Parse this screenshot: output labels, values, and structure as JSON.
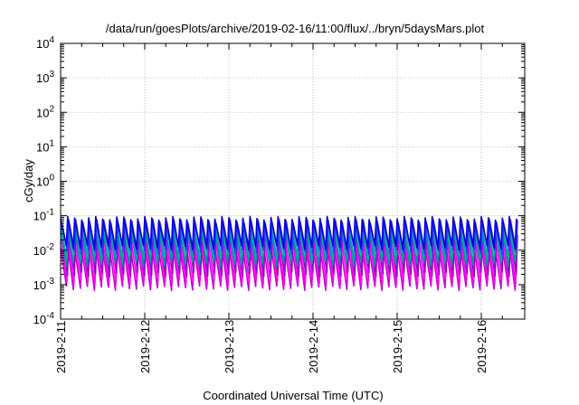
{
  "chart_data": {
    "type": "line",
    "title": "/data/run/goesPlots/archive/2019-02-16/11:00/flux/../bryn/5daysMars.plot",
    "xlabel": "Coordinated Universal Time (UTC)",
    "ylabel": "cGy/day",
    "yscale": "log",
    "ylim": [
      0.0001,
      10000
    ],
    "xlim": [
      "2019-02-11T00:00",
      "2019-02-16T11:00"
    ],
    "grid": true,
    "legend": "none",
    "x_ticks": [
      "2019-2-11",
      "2019-2-12",
      "2019-2-13",
      "2019-2-14",
      "2019-2-15",
      "2019-2-16"
    ],
    "y_ticks": [
      {
        "value": 0.0001,
        "base": "10",
        "exp": "-4"
      },
      {
        "value": 0.001,
        "base": "10",
        "exp": "-3"
      },
      {
        "value": 0.01,
        "base": "10",
        "exp": "-2"
      },
      {
        "value": 0.1,
        "base": "10",
        "exp": "-1"
      },
      {
        "value": 1,
        "base": "10",
        "exp": "0"
      },
      {
        "value": 10,
        "base": "10",
        "exp": "1"
      },
      {
        "value": 100,
        "base": "10",
        "exp": "2"
      },
      {
        "value": 1000,
        "base": "10",
        "exp": "3"
      },
      {
        "value": 10000,
        "base": "10",
        "exp": "4"
      }
    ],
    "series_pattern": {
      "kind": "periodic sawtooth",
      "cycles_per_day": 12,
      "bands": [
        {
          "color": "#cc00cc",
          "peak": 0.012,
          "trough": 0.0008
        },
        {
          "color": "#ff00ff",
          "peak": 0.02,
          "trough": 0.0012
        },
        {
          "color": "#9900cc",
          "peak": 0.03,
          "trough": 0.002
        },
        {
          "color": "#009999",
          "peak": 0.045,
          "trough": 0.004
        },
        {
          "color": "#00aaaa",
          "peak": 0.055,
          "trough": 0.006
        },
        {
          "color": "#3333ff",
          "peak": 0.07,
          "trough": 0.009
        },
        {
          "color": "#0000dd",
          "peak": 0.085,
          "trough": 0.012
        }
      ]
    }
  }
}
